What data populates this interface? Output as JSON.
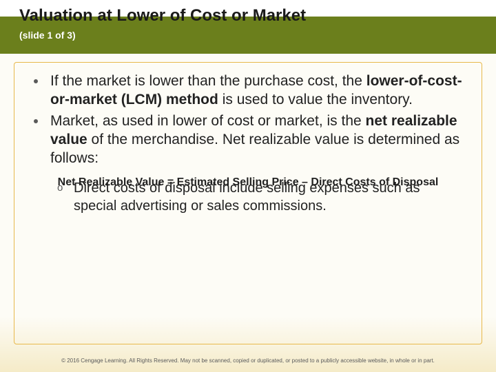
{
  "header": {
    "title": "Valuation at Lower of Cost or Market",
    "subtitle": "(slide 1 of 3)",
    "bar_color": "#6b7f1c",
    "title_color": "#1a1a1a",
    "subtitle_color": "#ffffff"
  },
  "content": {
    "border_color": "#e8b84a",
    "bullets": [
      {
        "prefix": "If the market is lower than the purchase cost, the ",
        "bold": "lower-of-cost-or-market (LCM) method ",
        "suffix": "is used to value the inventory."
      },
      {
        "prefix": "Market, as used in lower of cost or market, is the ",
        "bold": "net realizable value ",
        "suffix": "of the merchandise. Net realizable value is determined as follows:"
      }
    ],
    "formula": "Net Realizable Value = Estimated Selling Price – Direct Costs of Disposal",
    "sub_bullets": [
      "Direct costs of disposal include selling expenses such as special advertising or sales commissions."
    ]
  },
  "footer": {
    "text": "© 2016 Cengage Learning. All Rights Reserved. May not be scanned, copied or duplicated, or posted to a publicly accessible website, in whole or in part."
  },
  "style": {
    "body_bg_top": "#fdfcf6",
    "body_bg_bottom": "#f5ebc8",
    "bullet_color": "#5a5a5a",
    "text_color": "#222222",
    "body_fontsize": 21,
    "title_fontsize": 24,
    "formula_fontsize": 16,
    "footer_fontsize": 8
  }
}
